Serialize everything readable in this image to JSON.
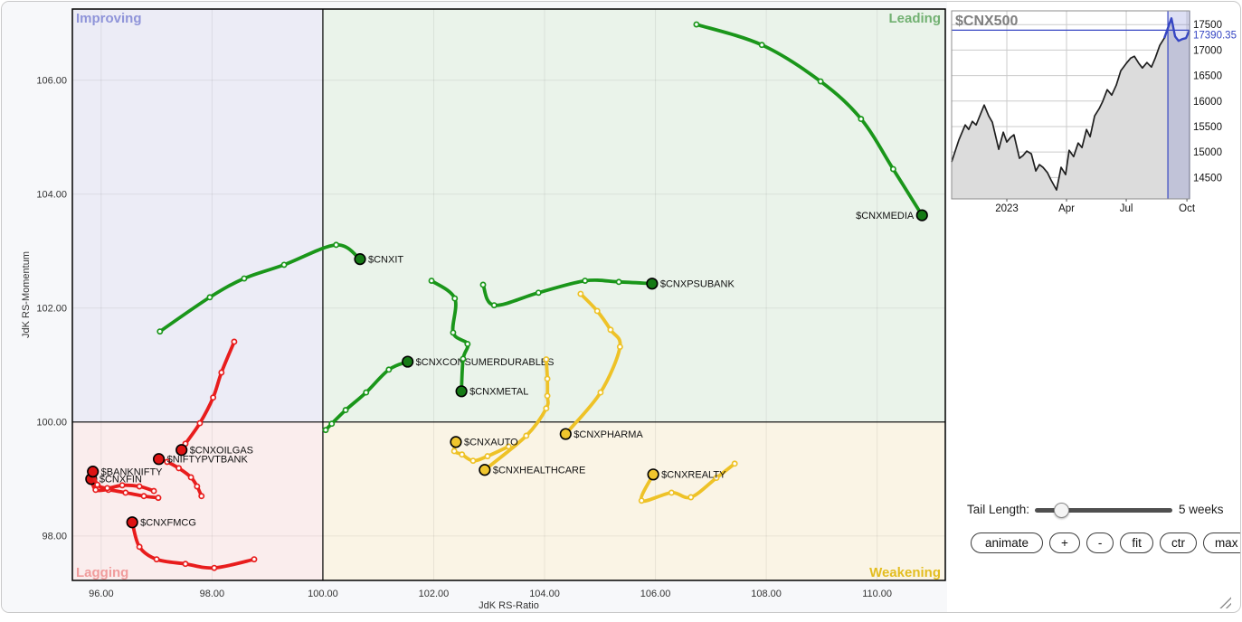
{
  "colors": {
    "leading_line": "#1a961a",
    "leading_head": "#157a15",
    "weakening_line": "#eec227",
    "weakening_head": "#f0c62e",
    "lagging_line": "#e81d1d",
    "lagging_head": "#de1414",
    "improving_text": "#8f94d9",
    "leading_text": "#72b172",
    "lagging_text": "#f09c9c",
    "weakening_text": "#e3bd20",
    "improving_bg": "#ececf6",
    "leading_bg": "#eaf3ea",
    "lagging_bg": "#faeded",
    "weakening_bg": "#faf4e5",
    "blue_accent": "#3646c3",
    "mini_fill": "#dcdcdc",
    "mini_line": "#1f1f1f"
  },
  "chart_data": [
    {
      "type": "scatter",
      "name": "relative-rotation-graph",
      "xlabel": "JdK RS-Ratio",
      "ylabel": "JdK RS-Momentum",
      "xlim": [
        95.48,
        111.23
      ],
      "ylim": [
        97.22,
        107.25
      ],
      "center": [
        100,
        100
      ],
      "x_ticks": [
        96,
        98,
        100,
        102,
        104,
        106,
        108,
        110
      ],
      "x_tick_labels": [
        "96.00",
        "98.00",
        "100.00",
        "102.00",
        "104.00",
        "106.00",
        "108.00",
        "110.00"
      ],
      "y_ticks": [
        98,
        100,
        102,
        104,
        106
      ],
      "y_tick_labels": [
        "98.00",
        "100.00",
        "102.00",
        "104.00",
        "106.00"
      ],
      "quadrant_labels": {
        "improving": "Improving",
        "leading": "Leading",
        "lagging": "Lagging",
        "weakening": "Weakening"
      },
      "tail_weeks": 5,
      "series": [
        {
          "symbol": "$CNXMEDIA",
          "group": "leading",
          "label_side": "left",
          "points": [
            [
              106.74,
              106.98
            ],
            [
              107.92,
              106.62
            ],
            [
              108.98,
              105.98
            ],
            [
              109.71,
              105.32
            ],
            [
              110.29,
              104.44
            ],
            [
              110.81,
              103.63
            ]
          ]
        },
        {
          "symbol": "$CNXIT",
          "group": "leading",
          "label_side": "right",
          "points": [
            [
              97.06,
              101.59
            ],
            [
              97.96,
              102.19
            ],
            [
              98.58,
              102.52
            ],
            [
              99.3,
              102.76
            ],
            [
              100.24,
              103.11
            ],
            [
              100.67,
              102.86
            ]
          ]
        },
        {
          "symbol": "$CNXPSUBANK",
          "group": "leading",
          "label_side": "right",
          "points": [
            [
              102.89,
              102.41
            ],
            [
              103.09,
              102.05
            ],
            [
              103.89,
              102.27
            ],
            [
              104.73,
              102.48
            ],
            [
              105.34,
              102.46
            ],
            [
              105.94,
              102.43
            ]
          ]
        },
        {
          "symbol": "$CNXCONSUMERDURABLES",
          "group": "leading",
          "label_side": "right",
          "points": [
            [
              100.05,
              99.86
            ],
            [
              100.16,
              99.97
            ],
            [
              100.41,
              100.21
            ],
            [
              100.78,
              100.52
            ],
            [
              101.19,
              100.92
            ],
            [
              101.53,
              101.06
            ]
          ]
        },
        {
          "symbol": "$CNXMETAL",
          "group": "leading",
          "label_side": "right",
          "points": [
            [
              101.96,
              102.48
            ],
            [
              102.38,
              102.17
            ],
            [
              102.35,
              101.57
            ],
            [
              102.61,
              101.37
            ],
            [
              102.53,
              101.11
            ],
            [
              102.5,
              100.54
            ]
          ]
        },
        {
          "symbol": "$CNXPHARMA",
          "group": "weakening",
          "label_side": "right",
          "points": [
            [
              104.65,
              102.25
            ],
            [
              104.95,
              101.95
            ],
            [
              105.19,
              101.62
            ],
            [
              105.36,
              101.32
            ],
            [
              105.01,
              100.52
            ],
            [
              104.38,
              99.79
            ]
          ]
        },
        {
          "symbol": "$CNXHEALTHCARE",
          "group": "weakening",
          "label_side": "right",
          "points": [
            [
              104.03,
              101.1
            ],
            [
              104.05,
              100.76
            ],
            [
              104.05,
              100.46
            ],
            [
              104.03,
              100.24
            ],
            [
              103.67,
              99.76
            ],
            [
              102.92,
              99.16
            ]
          ]
        },
        {
          "symbol": "$CNXAUTO",
          "group": "weakening",
          "label_side": "right",
          "points": [
            [
              103.35,
              99.57
            ],
            [
              102.97,
              99.4
            ],
            [
              102.71,
              99.32
            ],
            [
              102.51,
              99.43
            ],
            [
              102.37,
              99.49
            ],
            [
              102.4,
              99.65
            ]
          ]
        },
        {
          "symbol": "$CNXREALTY",
          "group": "weakening",
          "label_side": "right",
          "points": [
            [
              107.43,
              99.27
            ],
            [
              107.1,
              99.02
            ],
            [
              106.64,
              98.68
            ],
            [
              106.29,
              98.76
            ],
            [
              105.75,
              98.62
            ],
            [
              105.96,
              99.08
            ]
          ]
        },
        {
          "symbol": "$CNXOILGAS",
          "group": "lagging",
          "label_side": "right",
          "points": [
            [
              98.4,
              101.41
            ],
            [
              98.17,
              100.87
            ],
            [
              98.02,
              100.43
            ],
            [
              97.78,
              99.98
            ],
            [
              97.52,
              99.62
            ],
            [
              97.45,
              99.51
            ]
          ]
        },
        {
          "symbol": "$CNXFMCG",
          "group": "lagging",
          "label_side": "right",
          "points": [
            [
              98.76,
              97.59
            ],
            [
              98.04,
              97.44
            ],
            [
              97.52,
              97.51
            ],
            [
              97.0,
              97.59
            ],
            [
              96.69,
              97.81
            ],
            [
              96.56,
              98.24
            ]
          ]
        },
        {
          "symbol": "$CNXFIN",
          "group": "lagging",
          "label_side": "right",
          "points": [
            [
              97.03,
              98.67
            ],
            [
              96.77,
              98.7
            ],
            [
              96.44,
              98.76
            ],
            [
              96.13,
              98.81
            ],
            [
              95.9,
              98.81
            ],
            [
              95.82,
              99.0
            ]
          ]
        },
        {
          "symbol": "$NIFTYPVTBANK",
          "group": "lagging",
          "label_side": "right",
          "points": [
            [
              97.81,
              98.7
            ],
            [
              97.73,
              98.87
            ],
            [
              97.62,
              99.03
            ],
            [
              97.4,
              99.19
            ],
            [
              97.19,
              99.3
            ],
            [
              97.04,
              99.35
            ]
          ]
        },
        {
          "symbol": "$BANKNIFTY",
          "group": "lagging",
          "label_side": "right",
          "points": [
            [
              96.95,
              98.79
            ],
            [
              96.69,
              98.87
            ],
            [
              96.38,
              98.89
            ],
            [
              96.11,
              98.84
            ],
            [
              95.93,
              98.9
            ],
            [
              95.85,
              99.13
            ]
          ]
        }
      ]
    },
    {
      "type": "area",
      "name": "benchmark-price-chart",
      "symbol": "$CNX500",
      "last_value": 17390.35,
      "last_value_label": "17390.35",
      "ylim": [
        14080,
        17770
      ],
      "y_ticks": [
        14500,
        15000,
        15500,
        16000,
        16500,
        17000,
        17500
      ],
      "x_ticks": [
        {
          "label": "2023",
          "pos": 0.232
        },
        {
          "label": "Apr",
          "pos": 0.483
        },
        {
          "label": "Jul",
          "pos": 0.734
        },
        {
          "label": "Oct",
          "pos": 0.989
        }
      ],
      "highlight_from": 0.909,
      "points": [
        [
          0.0,
          14805
        ],
        [
          0.03,
          15231
        ],
        [
          0.057,
          15532
        ],
        [
          0.072,
          15443
        ],
        [
          0.087,
          15603
        ],
        [
          0.103,
          15532
        ],
        [
          0.137,
          15922
        ],
        [
          0.156,
          15709
        ],
        [
          0.171,
          15585
        ],
        [
          0.198,
          15053
        ],
        [
          0.217,
          15390
        ],
        [
          0.232,
          15195
        ],
        [
          0.247,
          15283
        ],
        [
          0.262,
          15337
        ],
        [
          0.285,
          14876
        ],
        [
          0.3,
          14929
        ],
        [
          0.316,
          15018
        ],
        [
          0.335,
          14965
        ],
        [
          0.354,
          14628
        ],
        [
          0.369,
          14752
        ],
        [
          0.384,
          14699
        ],
        [
          0.403,
          14592
        ],
        [
          0.418,
          14450
        ],
        [
          0.441,
          14255
        ],
        [
          0.46,
          14699
        ],
        [
          0.479,
          14557
        ],
        [
          0.494,
          15035
        ],
        [
          0.513,
          14911
        ],
        [
          0.532,
          15177
        ],
        [
          0.548,
          15088
        ],
        [
          0.567,
          15443
        ],
        [
          0.582,
          15301
        ],
        [
          0.601,
          15709
        ],
        [
          0.62,
          15851
        ],
        [
          0.635,
          15993
        ],
        [
          0.654,
          16223
        ],
        [
          0.673,
          16117
        ],
        [
          0.692,
          16312
        ],
        [
          0.711,
          16596
        ],
        [
          0.734,
          16738
        ],
        [
          0.753,
          16844
        ],
        [
          0.768,
          16880
        ],
        [
          0.787,
          16738
        ],
        [
          0.802,
          16649
        ],
        [
          0.821,
          16755
        ],
        [
          0.84,
          16667
        ],
        [
          0.856,
          16844
        ],
        [
          0.875,
          17092
        ],
        [
          0.894,
          17234
        ],
        [
          0.913,
          17482
        ],
        [
          0.924,
          17624
        ],
        [
          0.939,
          17270
        ],
        [
          0.954,
          17181
        ],
        [
          0.97,
          17216
        ],
        [
          0.985,
          17234
        ],
        [
          1.0,
          17390.35
        ]
      ]
    }
  ],
  "controls": {
    "tail_length_label": "Tail Length:",
    "tail_length_value": "5 weeks",
    "slider_position": 0.15,
    "buttons": [
      "animate",
      "+",
      "-",
      "fit",
      "ctr",
      "max"
    ]
  }
}
